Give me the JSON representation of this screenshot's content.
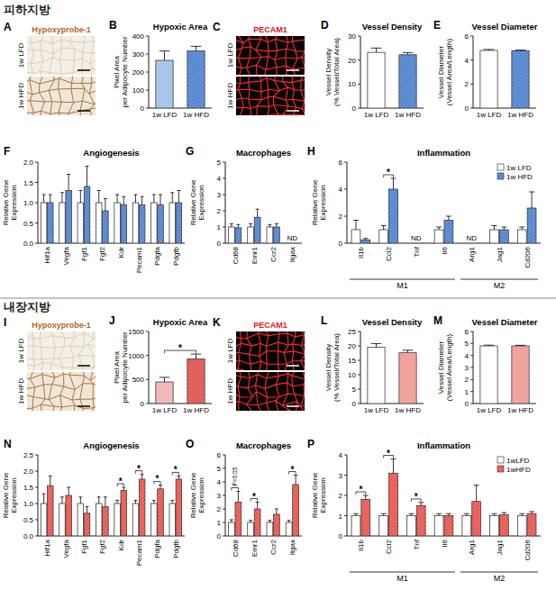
{
  "sections": [
    {
      "title": "피하지방"
    },
    {
      "title": "내장지방"
    }
  ],
  "images": [
    {
      "panel": "A",
      "title": "Hypoxyprobe-1",
      "rows": [
        "1w LFD",
        "1w HFD"
      ]
    },
    {
      "panel": "C",
      "title": "PECAM1",
      "rows": [
        "1w LFD",
        "1w HFD"
      ]
    },
    {
      "panel": "I",
      "title": "Hypoxyprobe-1",
      "rows": [
        "1w LFD",
        "1w HFD"
      ]
    },
    {
      "panel": "K",
      "title": "PECAM1",
      "rows": [
        "1w LFD",
        "1w HFD"
      ]
    }
  ],
  "chart_data": [
    {
      "panel": "B",
      "type": "bar",
      "title": "Hypoxic Area",
      "y_label": [
        "Pixel Area",
        "per Adipocyte Number"
      ],
      "categories": [
        "1w LFD",
        "1w HFD"
      ],
      "values": [
        265,
        318
      ],
      "errors": [
        52,
        25
      ],
      "colors": [
        "#a9c6ea",
        "#4f82cf"
      ],
      "ylim": [
        0,
        400
      ],
      "yticks": [
        0,
        100,
        200,
        300,
        400
      ]
    },
    {
      "panel": "D",
      "type": "bar",
      "title": "Vessel Density",
      "y_label": [
        "Vessel Density",
        "(% Vessel/Total Area)"
      ],
      "categories": [
        "1w LFD",
        "1w HFD"
      ],
      "values": [
        23.2,
        22.2
      ],
      "errors": [
        1.8,
        0.9
      ],
      "colors": [
        "#ffffff",
        "#4f82cf"
      ],
      "ylim": [
        0,
        30
      ],
      "yticks": [
        0,
        10,
        20,
        30
      ]
    },
    {
      "panel": "E",
      "type": "bar",
      "title": "Vessel Diameter",
      "y_label": [
        "Vessel Diameter",
        "(Vessel Area/Length)"
      ],
      "categories": [
        "1w LFD",
        "1w HFD"
      ],
      "values": [
        4.8,
        4.78
      ],
      "errors": [
        0.08,
        0.05
      ],
      "colors": [
        "#ffffff",
        "#4f82cf"
      ],
      "ylim": [
        0,
        6
      ],
      "yticks": [
        0,
        2,
        4,
        6
      ]
    },
    {
      "panel": "F",
      "type": "bar",
      "title": "Angiogenesis",
      "y_label": [
        "Relative Gene",
        "Expression"
      ],
      "categories": [
        "Hif1a",
        "Vegfa",
        "Fgf1",
        "Fgf2",
        "Kdr",
        "Pecam1",
        "Pdgfa",
        "Pdgfb"
      ],
      "series": [
        {
          "name": "1w LFD",
          "color": "#ffffff",
          "values": [
            1,
            1,
            1,
            1,
            1,
            1,
            1,
            1
          ],
          "errors": [
            0.2,
            0.25,
            0.3,
            0.3,
            0.2,
            0.2,
            0.2,
            0.25
          ]
        },
        {
          "name": "1w HFD",
          "color": "#4f82cf",
          "values": [
            1.0,
            1.3,
            1.4,
            0.8,
            0.95,
            0.95,
            0.95,
            1.0
          ],
          "errors": [
            0.2,
            0.4,
            0.5,
            0.3,
            0.2,
            0.2,
            0.25,
            0.3
          ]
        }
      ],
      "ylim": [
        0,
        2
      ],
      "yticks": [
        {
          "value": 0,
          "label": "0.0"
        },
        0.5,
        {
          "value": 1,
          "label": "1.0"
        },
        1.5,
        {
          "value": 2,
          "label": "2.0"
        }
      ]
    },
    {
      "panel": "G",
      "type": "bar",
      "title": "Macrophages",
      "y_label": [
        "Relative Gene",
        "Expression"
      ],
      "categories": [
        "Cd68",
        "Emr1",
        "Ccr2",
        "Itgax"
      ],
      "series": [
        {
          "name": "1w LFD",
          "color": "#ffffff",
          "values": [
            1,
            1,
            1,
            null
          ],
          "errors": [
            0.2,
            0.2,
            0.15,
            null
          ]
        },
        {
          "name": "1w HFD",
          "color": "#4f82cf",
          "values": [
            0.95,
            1.6,
            1.0,
            null
          ],
          "errors": [
            0.2,
            0.5,
            0.2,
            null
          ]
        }
      ],
      "annotations": [
        {
          "index": 3,
          "text": "ND"
        }
      ],
      "ylim": [
        0,
        5
      ],
      "yticks": [
        0,
        1,
        2,
        3,
        4,
        5
      ]
    },
    {
      "panel": "H",
      "type": "bar",
      "title": "Inflammation",
      "y_label": [
        "Relative Gene",
        "Expression"
      ],
      "categories": [
        "Il1b",
        "Ccl2",
        "Tnf",
        "Il6",
        "Arg1",
        "Jag1",
        "Cd206"
      ],
      "series": [
        {
          "name": "1w LFD",
          "color": "#ffffff",
          "values": [
            1,
            1,
            null,
            1,
            null,
            1,
            1
          ],
          "errors": [
            0.7,
            0.3,
            null,
            0.2,
            null,
            0.3,
            0.2
          ]
        },
        {
          "name": "1w HFD",
          "color": "#4f82cf",
          "values": [
            0.25,
            4.0,
            null,
            1.7,
            null,
            1.0,
            2.6
          ],
          "errors": [
            0.1,
            0.8,
            null,
            0.3,
            null,
            0.2,
            1.2
          ]
        }
      ],
      "annotations": [
        {
          "index": 2,
          "text": "ND"
        },
        {
          "index": 4,
          "text": "ND"
        }
      ],
      "significance": [
        {
          "index": 1,
          "label": "*"
        }
      ],
      "groups": [
        {
          "label": "M1",
          "from": 0,
          "to": 3
        },
        {
          "label": "M2",
          "from": 4,
          "to": 6
        }
      ],
      "legend": "top-right",
      "ylim": [
        0,
        6
      ],
      "yticks": [
        0,
        2,
        4,
        6
      ]
    },
    {
      "panel": "J",
      "type": "bar",
      "title": "Hypoxic Area",
      "y_label": [
        "Pixel Area",
        "per Adipocyte Number"
      ],
      "categories": [
        "1w LFD",
        "1w HFD"
      ],
      "values": [
        450,
        930
      ],
      "errors": [
        95,
        100
      ],
      "colors": [
        "#f5b8b8",
        "#e0524c"
      ],
      "significance": [
        {
          "from": 0,
          "to": 1,
          "label": "*"
        }
      ],
      "ylim": [
        0,
        1500
      ],
      "yticks": [
        0,
        500,
        1000,
        1500
      ]
    },
    {
      "panel": "L",
      "type": "bar",
      "title": "Vessel Density",
      "y_label": [
        "Vessel Density",
        "(% Vessel/Total Area)"
      ],
      "categories": [
        "1w LFD",
        "1w HFD"
      ],
      "values": [
        19.5,
        17.6
      ],
      "errors": [
        1.3,
        0.9
      ],
      "colors": [
        "#ffffff",
        "#f09a96"
      ],
      "ylim": [
        0,
        25
      ],
      "yticks": [
        0,
        5,
        10,
        15,
        20,
        25
      ]
    },
    {
      "panel": "M",
      "type": "bar",
      "title": "Vessel Diameter",
      "y_label": [
        "Vessel Diameter",
        "(Vessel Area/Length)"
      ],
      "categories": [
        "1w LFD",
        "1w HFD"
      ],
      "values": [
        4.8,
        4.8
      ],
      "errors": [
        0.06,
        0.05
      ],
      "colors": [
        "#ffffff",
        "#f09a96"
      ],
      "ylim": [
        0,
        6
      ],
      "yticks": [
        0,
        1,
        2,
        3,
        4,
        5,
        6
      ]
    },
    {
      "panel": "N",
      "type": "bar",
      "title": "Angiogenesis",
      "y_label": [
        "Relative Gene",
        "Expression"
      ],
      "categories": [
        "Hif1a",
        "Vegfa",
        "Fgf1",
        "Fgf2",
        "Kdr",
        "Pecam1",
        "Pdgfa",
        "Pdgfb"
      ],
      "series": [
        {
          "name": "1w LFD",
          "color": "#ffffff",
          "values": [
            1,
            1,
            1,
            1,
            1,
            1,
            1,
            1
          ],
          "errors": [
            0.3,
            0.2,
            0.2,
            0.2,
            0.1,
            0.1,
            0.1,
            0.1
          ]
        },
        {
          "name": "1w HFD",
          "color": "#e8554e",
          "values": [
            1.55,
            1.25,
            0.7,
            0.9,
            1.4,
            1.75,
            1.45,
            1.75
          ],
          "errors": [
            0.3,
            0.25,
            0.2,
            0.3,
            0.1,
            0.15,
            0.12,
            0.1
          ]
        }
      ],
      "significance": [
        {
          "index": 4,
          "label": "*"
        },
        {
          "index": 5,
          "label": "*"
        },
        {
          "index": 6,
          "label": "*"
        },
        {
          "index": 7,
          "label": "*"
        }
      ],
      "ylim": [
        0,
        2.5
      ],
      "yticks": [
        {
          "value": 0,
          "label": "0.0"
        },
        0.5,
        {
          "value": 1,
          "label": "1.0"
        },
        1.5,
        {
          "value": 2,
          "label": "2.0"
        },
        2.5
      ]
    },
    {
      "panel": "O",
      "type": "bar",
      "title": "Macrophages",
      "y_label": [
        "Relative Gene",
        "Expression"
      ],
      "categories": [
        "Cd68",
        "Emr1",
        "Ccr2",
        "Itgax"
      ],
      "series": [
        {
          "name": "1w LFD",
          "color": "#ffffff",
          "values": [
            1,
            1,
            1,
            1
          ],
          "errors": [
            0.2,
            0.15,
            0.15,
            0.15
          ]
        },
        {
          "name": "1w HFD",
          "color": "#e8554e",
          "values": [
            2.5,
            2.0,
            1.6,
            3.8
          ],
          "errors": [
            0.8,
            0.5,
            0.4,
            0.7
          ]
        }
      ],
      "significance": [
        {
          "index": 0,
          "label": "P=0.05"
        },
        {
          "index": 1,
          "label": "*"
        },
        {
          "index": 3,
          "label": "*"
        }
      ],
      "ylim": [
        0,
        6
      ],
      "yticks": [
        0,
        1,
        2,
        3,
        4,
        5,
        6
      ]
    },
    {
      "panel": "P",
      "type": "bar",
      "title": "Inflammation",
      "y_label": [
        "Relative Gene",
        "Expression"
      ],
      "categories": [
        "Il1b",
        "Ccl2",
        "Tnf",
        "Il6",
        "Arg1",
        "Jag1",
        "Cd206"
      ],
      "series": [
        {
          "name": "1wLFD",
          "color": "#ffffff",
          "values": [
            1,
            1,
            1,
            1,
            1,
            1,
            1
          ],
          "errors": [
            0.1,
            0.1,
            0.1,
            0.1,
            0.1,
            0.1,
            0.1
          ]
        },
        {
          "name": "1wHFD",
          "color": "#e8554e",
          "values": [
            1.8,
            3.1,
            1.5,
            1.0,
            1.7,
            1.05,
            1.1
          ],
          "errors": [
            0.2,
            0.7,
            0.15,
            0.1,
            0.8,
            0.1,
            0.1
          ]
        }
      ],
      "significance": [
        {
          "index": 0,
          "label": "*"
        },
        {
          "index": 1,
          "label": "*"
        },
        {
          "index": 2,
          "label": "*"
        }
      ],
      "groups": [
        {
          "label": "M1",
          "from": 0,
          "to": 3
        },
        {
          "label": "M2",
          "from": 4,
          "to": 6
        }
      ],
      "legend": "top-right",
      "ylim": [
        0,
        4
      ],
      "yticks": [
        0,
        1,
        2,
        3,
        4
      ]
    }
  ]
}
